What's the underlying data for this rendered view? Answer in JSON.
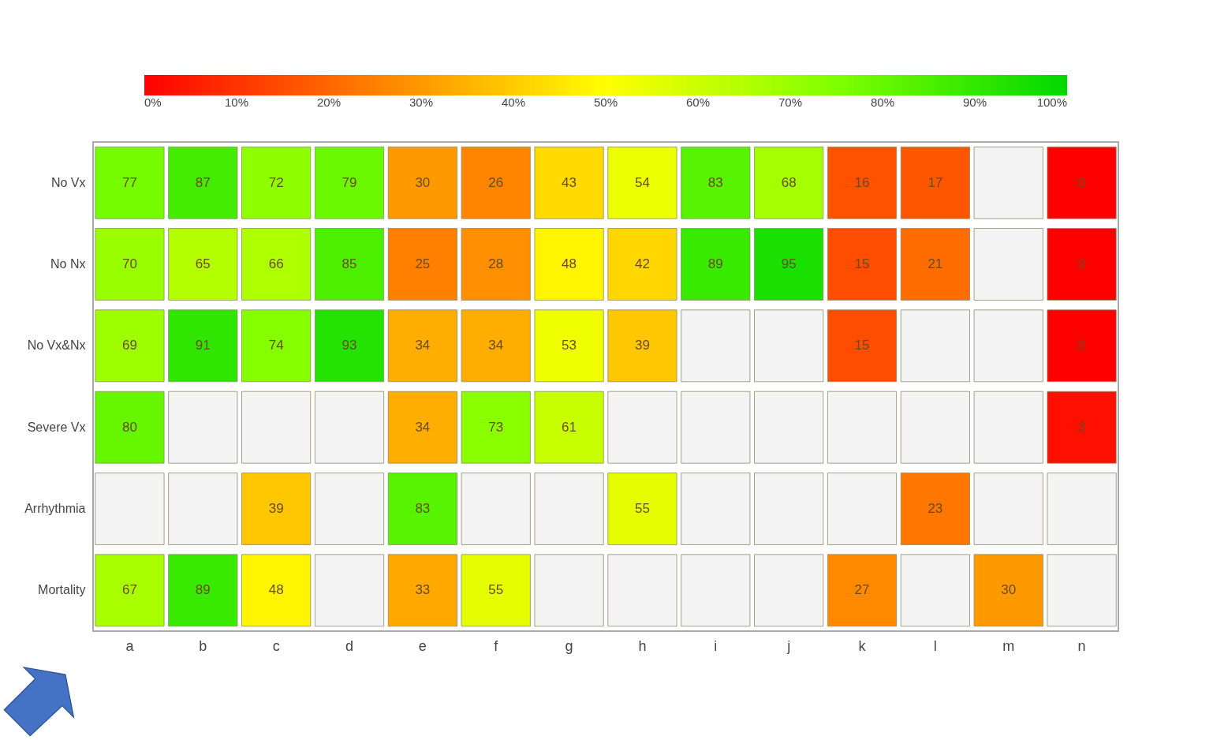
{
  "chart_data": {
    "type": "heatmap",
    "categories": [
      "a",
      "b",
      "c",
      "d",
      "e",
      "f",
      "g",
      "h",
      "i",
      "j",
      "k",
      "l",
      "m",
      "n"
    ],
    "y_categories": [
      "No Vx",
      "No Nx",
      "No Vx&Nx",
      "Severe Vx",
      "Arrhythmia",
      "Mortality"
    ],
    "cells": [
      [
        77,
        87,
        72,
        79,
        30,
        26,
        43,
        54,
        83,
        68,
        16,
        17,
        null,
        0
      ],
      [
        70,
        65,
        66,
        85,
        25,
        28,
        48,
        42,
        89,
        95,
        15,
        21,
        null,
        0
      ],
      [
        69,
        91,
        74,
        93,
        34,
        34,
        53,
        39,
        null,
        null,
        15,
        null,
        null,
        0
      ],
      [
        80,
        null,
        null,
        null,
        34,
        73,
        61,
        null,
        null,
        null,
        null,
        null,
        null,
        3
      ],
      [
        null,
        null,
        39,
        null,
        83,
        null,
        null,
        55,
        null,
        null,
        null,
        23,
        null,
        null
      ],
      [
        67,
        89,
        48,
        null,
        33,
        55,
        null,
        null,
        null,
        null,
        27,
        null,
        30,
        null
      ]
    ],
    "clim": [
      0,
      100
    ],
    "cticks": [
      {
        "value": 0,
        "label": "0%"
      },
      {
        "value": 10,
        "label": "10%"
      },
      {
        "value": 20,
        "label": "20%"
      },
      {
        "value": 30,
        "label": "30%"
      },
      {
        "value": 40,
        "label": "40%"
      },
      {
        "value": 50,
        "label": "50%"
      },
      {
        "value": 60,
        "label": "60%"
      },
      {
        "value": 70,
        "label": "70%"
      },
      {
        "value": 80,
        "label": "80%"
      },
      {
        "value": 90,
        "label": "90%"
      },
      {
        "value": 100,
        "label": "100%"
      }
    ],
    "data_labels": true
  }
}
